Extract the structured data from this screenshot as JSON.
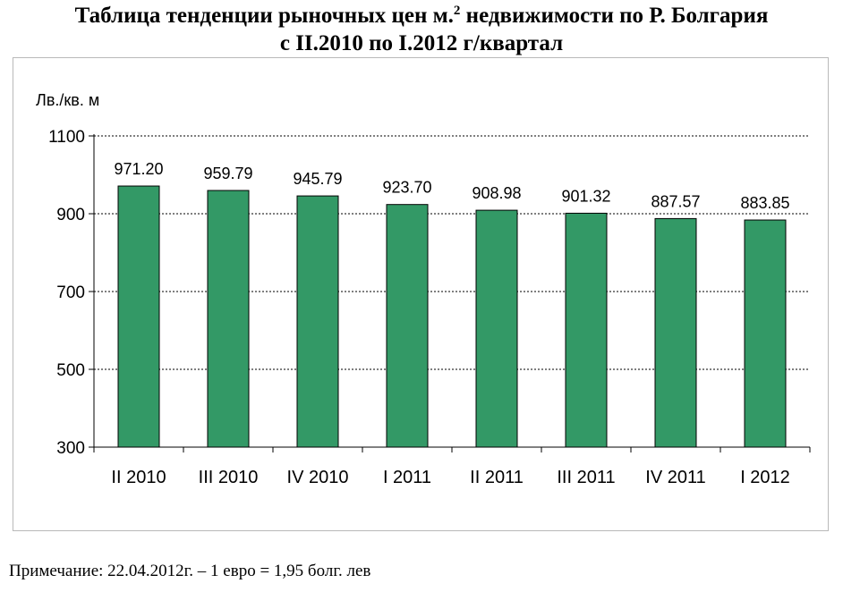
{
  "title": {
    "line1_before": "Таблица тенденции рыночных цен м.",
    "line1_sup": "2",
    "line1_after": " недвижимости по Р. Болгария",
    "line2": "с II.2010 по I.2012 г/квартал"
  },
  "note": "Примечание: 22.04.2012г. –  1 евро = 1,95 болг. лев",
  "chart_data": {
    "type": "bar",
    "ylabel": "Лв./кв. м",
    "categories": [
      "II 2010",
      "III 2010",
      "IV 2010",
      "I 2011",
      "II 2011",
      "III 2011",
      "IV 2011",
      "I 2012"
    ],
    "values": [
      971.2,
      959.79,
      945.79,
      923.7,
      908.98,
      901.32,
      887.57,
      883.85
    ],
    "data_labels": [
      "971.20",
      "959.79",
      "945.79",
      "923.70",
      "908.98",
      "901.32",
      "887.57",
      "883.85"
    ],
    "ylim": [
      300,
      1100
    ],
    "yticks": [
      300,
      500,
      700,
      900,
      1100
    ],
    "grid": true,
    "bar_color": "#339966"
  }
}
